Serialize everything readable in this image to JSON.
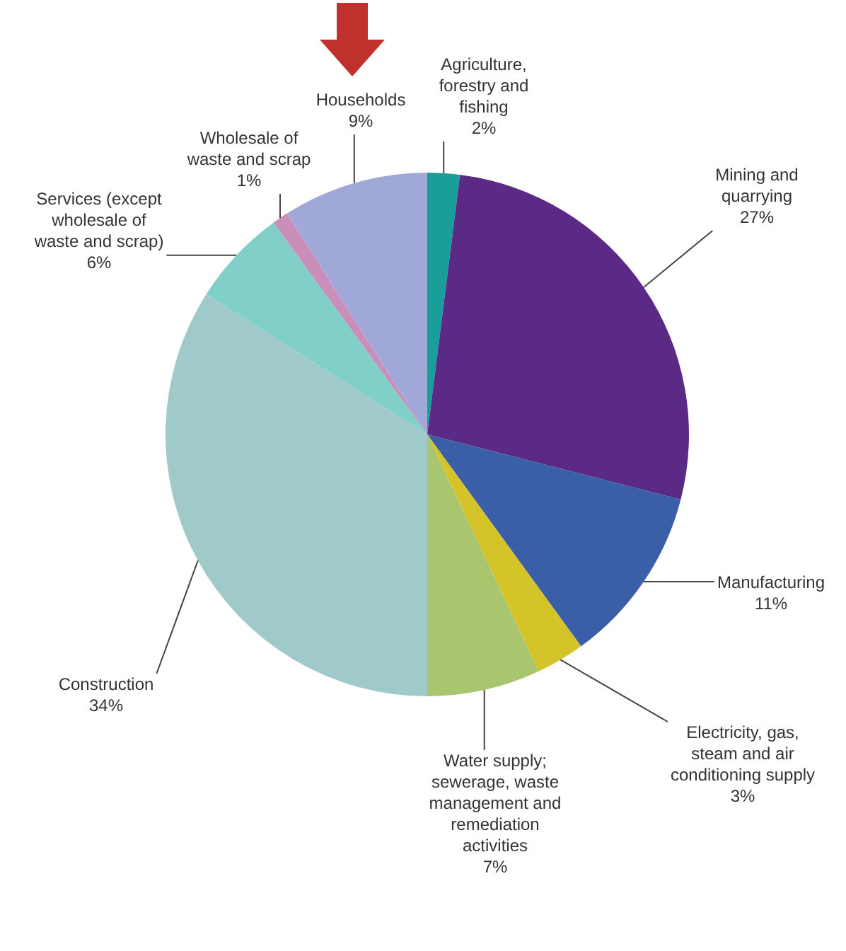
{
  "chart_data": {
    "type": "pie",
    "categories": [
      "Agriculture, forestry and fishing",
      "Mining and quarrying",
      "Manufacturing",
      "Electricity, gas, steam and air conditioning supply",
      "Water supply; sewerage, waste management and remediation activities",
      "Construction",
      "Services (except wholesale of waste and scrap)",
      "Wholesale of waste and scrap",
      "Households"
    ],
    "values": [
      2,
      27,
      11,
      3,
      7,
      34,
      6,
      1,
      9
    ],
    "colors": [
      "#1a9e9a",
      "#5b2a86",
      "#3a5ea8",
      "#d4c42a",
      "#a9c66e",
      "#a0c9c9",
      "#80cfc8",
      "#c98fba",
      "#a0a8d8"
    ],
    "value_labels": [
      "2%",
      "27%",
      "11%",
      "3%",
      "7%",
      "34%",
      "6%",
      "1%",
      "9%"
    ]
  }
}
